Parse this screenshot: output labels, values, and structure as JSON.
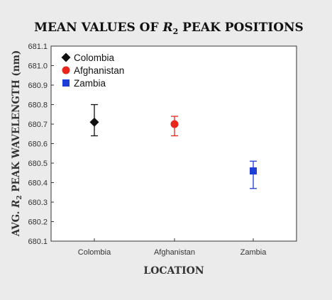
{
  "chart_data": {
    "type": "scatter",
    "title_main": "MEAN VALUES OF ",
    "title_italic": "R",
    "title_sub": "2",
    "title_end": " PEAK POSITIONS",
    "xlabel": "LOCATION",
    "ylabel_prefix": "AVG. ",
    "ylabel_italic": "R",
    "ylabel_sub": "2",
    "ylabel_suffix": " PEAK WAVELENGTH (nm)",
    "categories": [
      "Colombia",
      "Afghanistan",
      "Zambia"
    ],
    "ylim": [
      680.1,
      681.1
    ],
    "yticks": [
      "680.1",
      "680.2",
      "680.3",
      "680.4",
      "680.5",
      "680.6",
      "680.7",
      "680.8",
      "680.9",
      "681.0",
      "681.1"
    ],
    "grid": false,
    "legend_position": "top-left",
    "series": [
      {
        "name": "Colombia",
        "category": "Colombia",
        "mean": 680.71,
        "lower": 680.64,
        "upper": 680.8,
        "color": "#111111",
        "marker": "diamond"
      },
      {
        "name": "Afghanistan",
        "category": "Afghanistan",
        "mean": 680.7,
        "lower": 680.64,
        "upper": 680.74,
        "color": "#e8261c",
        "marker": "circle"
      },
      {
        "name": "Zambia",
        "category": "Zambia",
        "mean": 680.46,
        "lower": 680.37,
        "upper": 680.51,
        "color": "#1e3fd6",
        "marker": "square"
      }
    ]
  }
}
